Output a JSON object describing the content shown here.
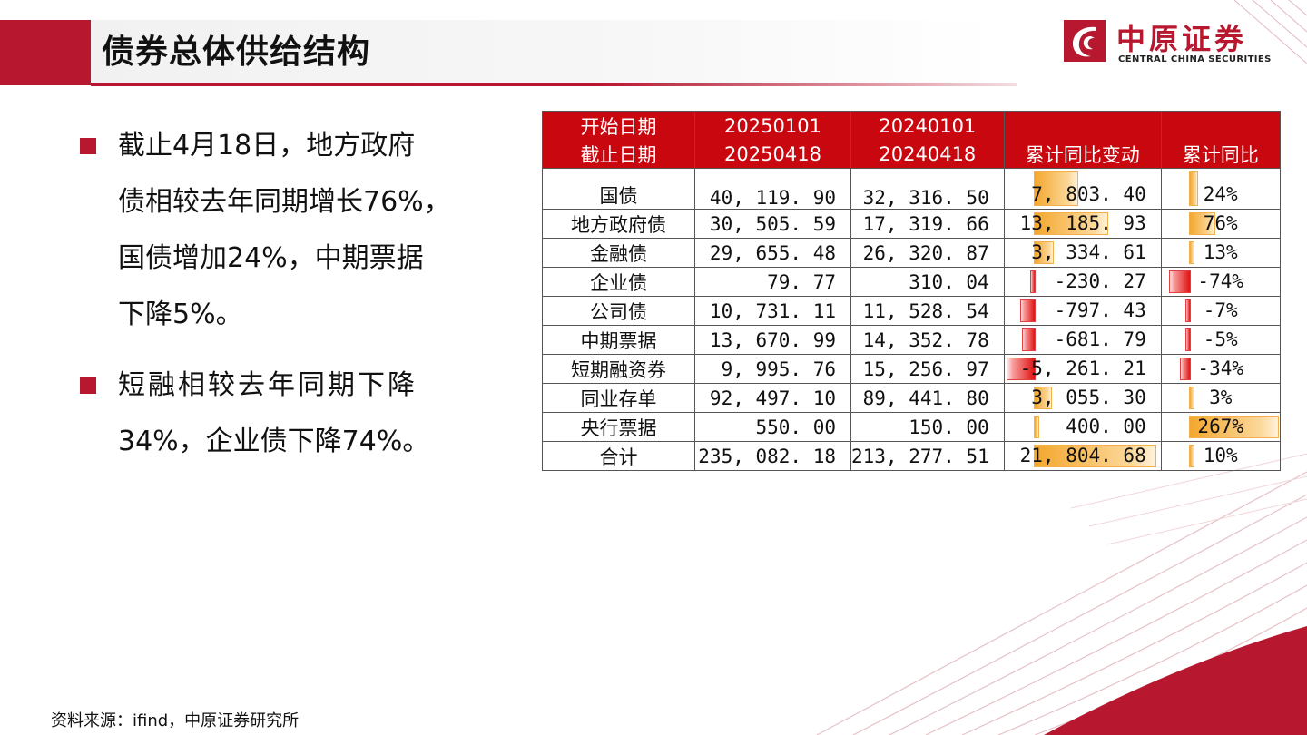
{
  "header": {
    "title": "债券总体供给结构"
  },
  "logo": {
    "cn": "中原证券",
    "en": "CENTRAL CHINA SECURITIES"
  },
  "bullets": [
    {
      "lines": [
        "截止4月18日，地方政府",
        "债相较去年同期增长76%，",
        "国债增加24%，中期票据",
        "下降5%。"
      ]
    },
    {
      "lines": [
        "短融相较去年同期下降",
        "34%，企业债下降74%。"
      ]
    }
  ],
  "table": {
    "header_row1": [
      "开始日期",
      "20250101",
      "20240101",
      "",
      ""
    ],
    "header_row2": [
      "截止日期",
      "20250418",
      "20240418",
      "累计同比变动",
      "累计同比"
    ],
    "rows": [
      {
        "name": "国债",
        "v2025": "40, 119. 90",
        "v2024": "32, 316. 50",
        "change": "7, 803. 40",
        "change_value": 7803.4,
        "pct": "24%",
        "pct_value": 24
      },
      {
        "name": "地方政府债",
        "v2025": "30, 505. 59",
        "v2024": "17, 319. 66",
        "change": "13, 185. 93",
        "change_value": 13185.93,
        "pct": "76%",
        "pct_value": 76
      },
      {
        "name": "金融债",
        "v2025": "29, 655. 48",
        "v2024": "26, 320. 87",
        "change": "3, 334. 61",
        "change_value": 3334.61,
        "pct": "13%",
        "pct_value": 13
      },
      {
        "name": "企业债",
        "v2025": "79. 77",
        "v2024": "310. 04",
        "change": "-230. 27",
        "change_value": -230.27,
        "pct": "-74%",
        "pct_value": -74
      },
      {
        "name": "公司债",
        "v2025": "10, 731. 11",
        "v2024": "11, 528. 54",
        "change": "-797. 43",
        "change_value": -797.43,
        "pct": "-7%",
        "pct_value": -7
      },
      {
        "name": "中期票据",
        "v2025": "13, 670. 99",
        "v2024": "14, 352. 78",
        "change": "-681. 79",
        "change_value": -681.79,
        "pct": "-5%",
        "pct_value": -5
      },
      {
        "name": "短期融资券",
        "v2025": "9, 995. 76",
        "v2024": "15, 256. 97",
        "change": "-5, 261. 21",
        "change_value": -5261.21,
        "pct": "-34%",
        "pct_value": -34
      },
      {
        "name": "同业存单",
        "v2025": "92, 497. 10",
        "v2024": "89, 441. 80",
        "change": "3, 055. 30",
        "change_value": 3055.3,
        "pct": "3%",
        "pct_value": 3
      },
      {
        "name": "央行票据",
        "v2025": "550. 00",
        "v2024": "150. 00",
        "change": "400. 00",
        "change_value": 400.0,
        "pct": "267%",
        "pct_value": 267
      },
      {
        "name": "合计",
        "v2025": "235, 082. 18",
        "v2024": "213, 277. 51",
        "change": "21, 804. 68",
        "change_value": 21804.68,
        "pct": "10%",
        "pct_value": 10
      }
    ]
  },
  "source": "资料来源：ifind，中原证券研究所",
  "colors": {
    "brand_red": "#b8182f",
    "header_red": "#c8070f",
    "pos_bar": "#f4a72e",
    "neg_bar": "#e01212"
  }
}
